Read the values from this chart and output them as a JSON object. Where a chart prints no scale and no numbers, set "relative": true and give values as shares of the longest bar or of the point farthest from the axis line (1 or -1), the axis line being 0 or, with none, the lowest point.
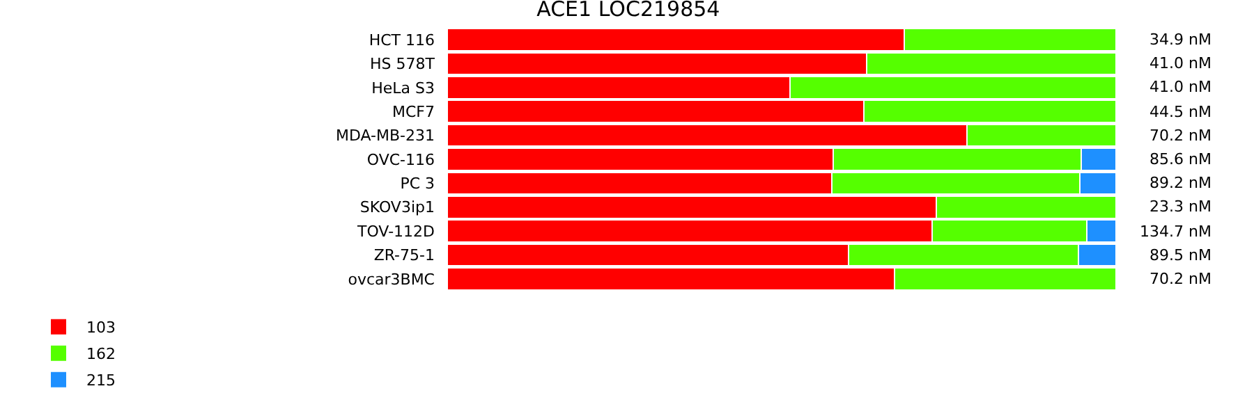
{
  "chart_data": {
    "type": "bar",
    "title": "ACE1 LOC219854",
    "orientation": "horizontal",
    "stacked": true,
    "relative": true,
    "categories": [
      "HCT 116",
      "HS 578T",
      "HeLa S3",
      "MCF7",
      "MDA-MB-231",
      "OVC-116",
      "PC 3",
      "SKOV3ip1",
      "TOV-112D",
      "ZR-75-1",
      "ovcar3BMC"
    ],
    "series": [
      {
        "name": "103",
        "color": "#ff0000",
        "values": [
          0.683,
          0.627,
          0.512,
          0.623,
          0.777,
          0.577,
          0.575,
          0.731,
          0.725,
          0.6,
          0.669
        ]
      },
      {
        "name": "162",
        "color": "#55ff00",
        "values": [
          0.317,
          0.373,
          0.488,
          0.377,
          0.223,
          0.371,
          0.371,
          0.269,
          0.231,
          0.344,
          0.331
        ]
      },
      {
        "name": "215",
        "color": "#1e90ff",
        "values": [
          null,
          null,
          null,
          null,
          null,
          0.052,
          0.054,
          null,
          0.044,
          0.056,
          null
        ]
      }
    ],
    "annotations": [
      "34.9 nM",
      "41.0 nM",
      "41.0 nM",
      "44.5 nM",
      "70.2 nM",
      "85.6 nM",
      "89.2 nM",
      "23.3 nM",
      "134.7 nM",
      "89.5 nM",
      "70.2 nM"
    ],
    "legend": "bottom left"
  }
}
